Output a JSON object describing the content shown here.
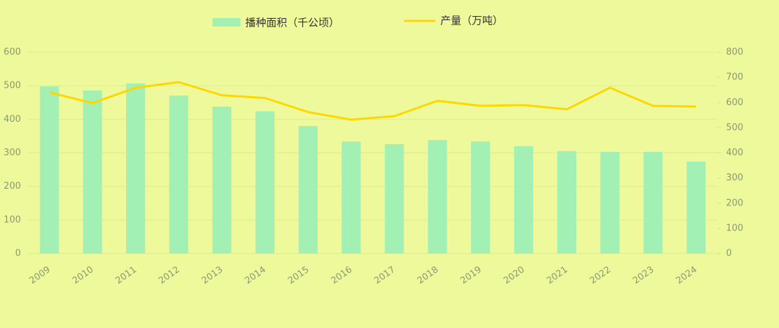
{
  "chart_data": {
    "type": "bar-line",
    "categories": [
      "2009",
      "2010",
      "2011",
      "2012",
      "2013",
      "2014",
      "2015",
      "2016",
      "2017",
      "2018",
      "2019",
      "2020",
      "2021",
      "2022",
      "2023",
      "2024"
    ],
    "series": [
      {
        "name": "播种面积（千公顷）",
        "type": "bar",
        "color": "#a3f0b4",
        "values": [
          498,
          486,
          507,
          471,
          438,
          424,
          380,
          334,
          326,
          338,
          334,
          320,
          305,
          303,
          303,
          274
        ]
      },
      {
        "name": "产量（万吨）",
        "type": "line",
        "axis": "y2",
        "color": "#ffd700",
        "values": [
          640,
          598,
          659,
          681,
          629,
          618,
          562,
          532,
          546,
          607,
          587,
          590,
          573,
          659,
          587,
          584
        ]
      }
    ],
    "ylim": [
      0,
      600
    ],
    "yticks": [
      0,
      100,
      200,
      300,
      400,
      500,
      600
    ],
    "y2lim": [
      0,
      800
    ],
    "y2ticks": [
      0,
      100,
      200,
      300,
      400,
      500,
      600,
      700,
      800
    ],
    "grid": true
  }
}
